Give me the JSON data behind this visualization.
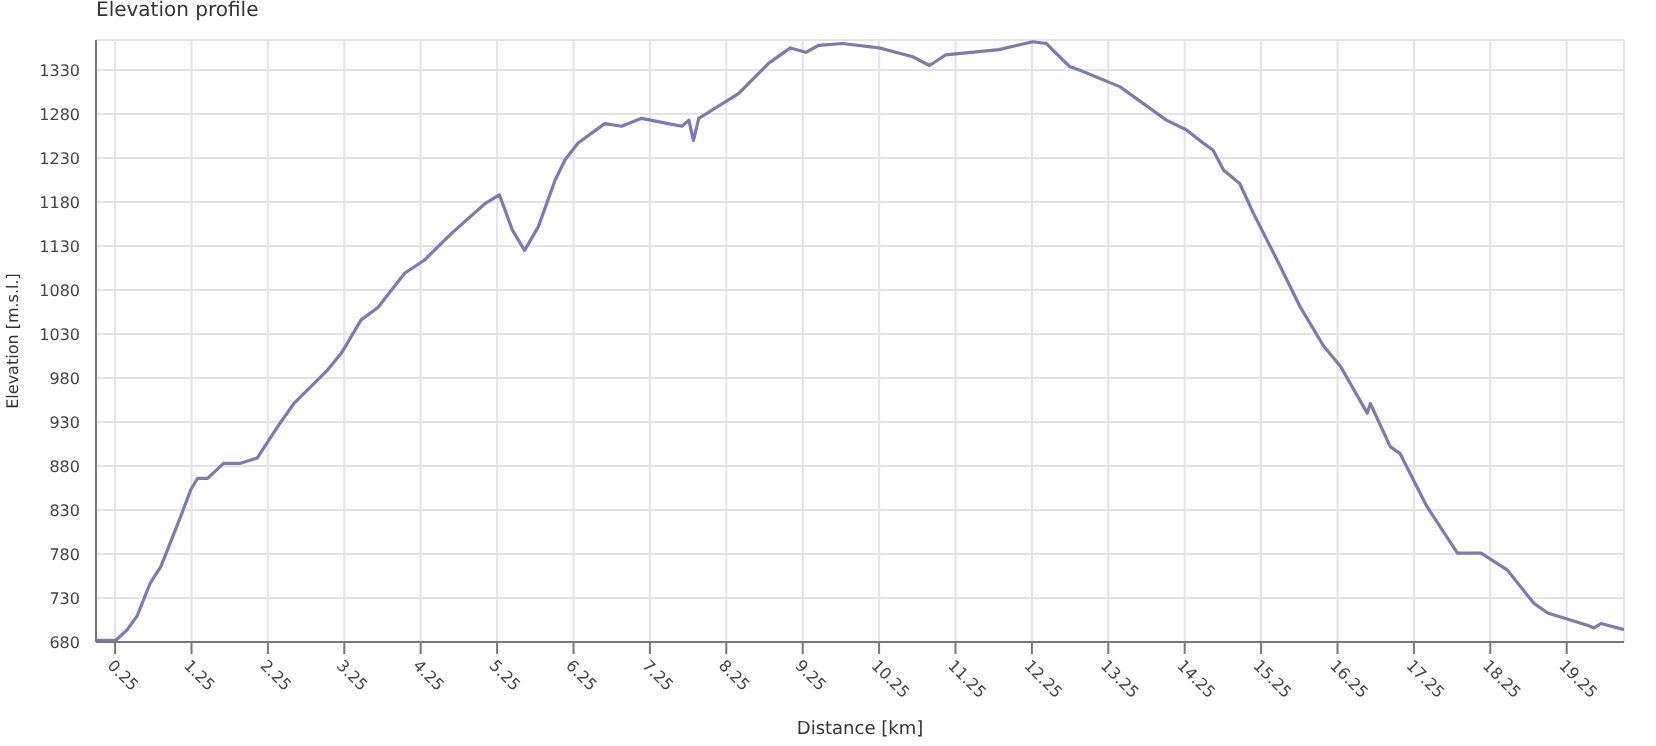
{
  "chart_data": {
    "type": "line",
    "title": "Elevation profile",
    "xlabel": "Distance [km]",
    "ylabel": "Elevation [m.s.l.]",
    "x": [
      0.01,
      0.26,
      0.41,
      0.54,
      0.71,
      0.85,
      1.11,
      1.24,
      1.33,
      1.46,
      1.67,
      1.89,
      2.11,
      2.38,
      2.59,
      2.81,
      3.03,
      3.21,
      3.47,
      3.69,
      4.04,
      4.3,
      4.65,
      5.09,
      5.28,
      5.45,
      5.61,
      5.79,
      6.01,
      6.14,
      6.31,
      6.66,
      6.88,
      7.14,
      7.49,
      7.67,
      7.76,
      7.82,
      7.89,
      8.41,
      8.81,
      9.09,
      9.29,
      9.46,
      9.77,
      10.25,
      10.69,
      10.91,
      11.12,
      11.82,
      12.26,
      12.44,
      12.74,
      12.87,
      13.4,
      14.01,
      14.27,
      14.49,
      14.62,
      14.76,
      14.97,
      15.15,
      15.5,
      15.76,
      16.07,
      16.29,
      16.64,
      16.68,
      16.94,
      17.07,
      17.42,
      17.82,
      18.13,
      18.47,
      18.82,
      19.0,
      19.52,
      19.61,
      19.7,
      20.0
    ],
    "series": [
      {
        "color": "#7b7bb0",
        "values": [
          682,
          682,
          694,
          710,
          747,
          766,
          823,
          853,
          866,
          866,
          883,
          883,
          889,
          925,
          951,
          970,
          989,
          1008,
          1046,
          1060,
          1099,
          1114,
          1144,
          1178,
          1188,
          1148,
          1125,
          1152,
          1205,
          1228,
          1247,
          1269,
          1266,
          1275,
          1269,
          1266,
          1273,
          1250,
          1275,
          1303,
          1338,
          1355,
          1350,
          1358,
          1360,
          1355,
          1345,
          1335,
          1347,
          1353,
          1362,
          1360,
          1334,
          1330,
          1311,
          1273,
          1262,
          1247,
          1239,
          1216,
          1201,
          1167,
          1107,
          1061,
          1016,
          993,
          940,
          951,
          902,
          894,
          834,
          781,
          781,
          762,
          724,
          713,
          699,
          696,
          701,
          694
        ]
      }
    ],
    "xlim": [
      0,
      20
    ],
    "xticks": [
      0.25,
      1.25,
      2.25,
      3.25,
      4.25,
      5.25,
      6.25,
      7.25,
      8.25,
      9.25,
      10.25,
      11.25,
      12.25,
      13.25,
      14.25,
      15.25,
      16.25,
      17.25,
      18.25,
      19.25
    ],
    "ylim": [
      680,
      1364
    ],
    "yticks": [
      680,
      730,
      780,
      830,
      880,
      930,
      980,
      1030,
      1080,
      1130,
      1180,
      1230,
      1280,
      1330
    ],
    "grid": true,
    "marker": "none",
    "line_style": "solid",
    "legend": false
  }
}
